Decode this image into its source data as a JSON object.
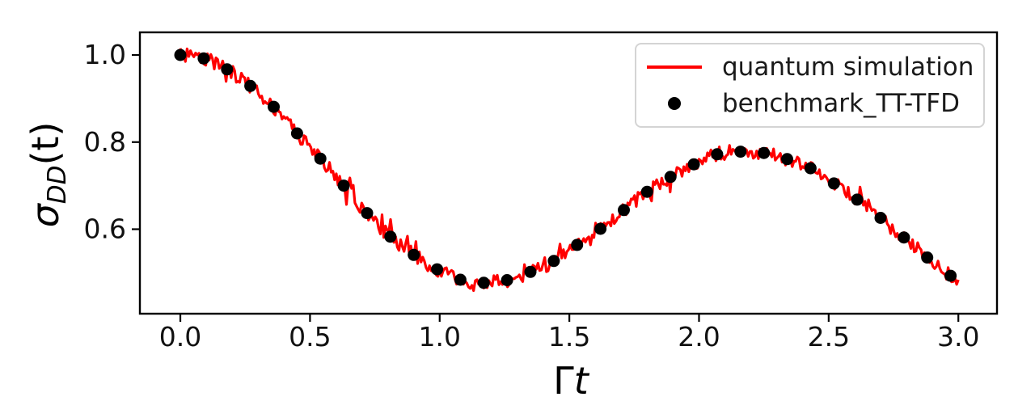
{
  "figure": {
    "background": "#ffffff"
  },
  "chart_data": {
    "type": "line",
    "title": "",
    "xlabel": {
      "text": "Γt",
      "upright": "Γ",
      "italic": "t"
    },
    "ylabel": {
      "text": "σ_DD(t)",
      "base": "σ",
      "subscript": "DD",
      "rest": "(t)"
    },
    "axes": {
      "xlim": [
        -0.156,
        3.149
      ],
      "ylim": [
        0.406,
        1.052
      ],
      "xticks": [
        0.0,
        0.5,
        1.0,
        1.5,
        2.0,
        2.5,
        3.0
      ],
      "xtick_labels": [
        "0.0",
        "0.5",
        "1.0",
        "1.5",
        "2.0",
        "2.5",
        "3.0"
      ],
      "yticks": [
        0.6,
        0.8,
        1.0
      ],
      "ytick_labels": [
        "0.6",
        "0.8",
        "1.0"
      ],
      "grid": false,
      "frame_color": "#000000",
      "tick_label_color": "#111111"
    },
    "legend": {
      "position": "upper-right"
    },
    "series": [
      {
        "name": "quantum simulation",
        "type": "noisy-line",
        "color": "#ff0000",
        "line_width": 3.2,
        "derived_from": "benchmark_TT-TFD",
        "x_start": 0.0,
        "x_end": 3.0,
        "samples": 460,
        "noise_amplitude": 0.016,
        "spike_amplitude": 0.028,
        "spike_probability": 0.12,
        "seed": 12345
      },
      {
        "name": "benchmark_TT-TFD",
        "type": "scatter",
        "color": "#000000",
        "marker_radius": 7.5,
        "x": [
          0.0,
          0.09,
          0.18,
          0.27,
          0.36,
          0.45,
          0.54,
          0.63,
          0.72,
          0.81,
          0.9,
          0.99,
          1.08,
          1.17,
          1.26,
          1.35,
          1.44,
          1.53,
          1.62,
          1.71,
          1.8,
          1.89,
          1.98,
          2.07,
          2.16,
          2.25,
          2.34,
          2.43,
          2.52,
          2.61,
          2.7,
          2.79,
          2.88,
          2.97
        ],
        "y": [
          1.0,
          0.992,
          0.967,
          0.929,
          0.881,
          0.82,
          0.762,
          0.7,
          0.637,
          0.583,
          0.541,
          0.508,
          0.484,
          0.477,
          0.483,
          0.502,
          0.527,
          0.564,
          0.601,
          0.644,
          0.686,
          0.72,
          0.749,
          0.772,
          0.778,
          0.775,
          0.761,
          0.74,
          0.705,
          0.668,
          0.626,
          0.581,
          0.535,
          0.493
        ]
      }
    ]
  }
}
